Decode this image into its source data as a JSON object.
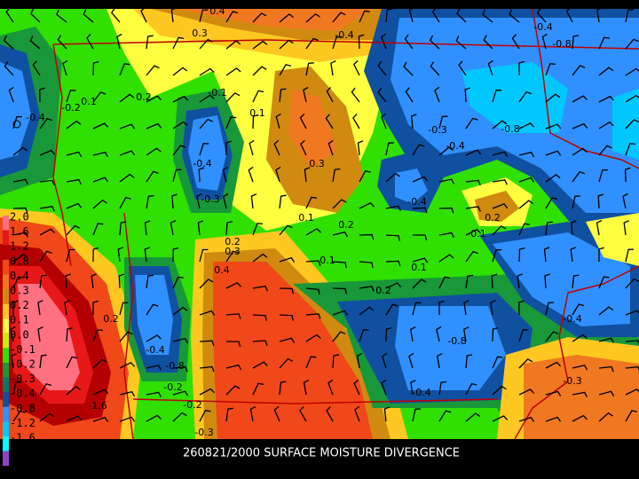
{
  "title": "260821/2000 SURFACE MOISTURE DIVERGENCE",
  "legend": {
    "levels": [
      {
        "label": "2.0",
        "color": "#ff7080"
      },
      {
        "label": "1.6",
        "color": "#e81818"
      },
      {
        "label": "1.2",
        "color": "#b40000"
      },
      {
        "label": "0.8",
        "color": "#f04818"
      },
      {
        "label": "0.4",
        "color": "#f07820"
      },
      {
        "label": "0.3",
        "color": "#d08a10"
      },
      {
        "label": "0.2",
        "color": "#ffc820"
      },
      {
        "label": "0.1",
        "color": "#ffff40"
      },
      {
        "label": "0.0",
        "color": "#c8f000"
      },
      {
        "label": "-0.1",
        "color": "#30e000"
      },
      {
        "label": "-0.2",
        "color": "#189838"
      },
      {
        "label": "-0.3",
        "color": "#0a7868"
      },
      {
        "label": "-0.4",
        "color": "#1050a0"
      },
      {
        "label": "-0.8",
        "color": "#3090ff"
      },
      {
        "label": "-1.2",
        "color": "#00c8ff"
      },
      {
        "label": "-1.6",
        "color": "#00ffff"
      }
    ]
  },
  "contour_labels": [
    "0.4",
    "0.3",
    "-0.4",
    "-0.8",
    "-0.4",
    "-0.2",
    "0.1",
    "0.2",
    "-0.1",
    "0.1",
    "-0.4",
    "-0.3",
    "0.3",
    "-0.8",
    "-0.4",
    "-0.3",
    "-0.4",
    "0.2",
    "0.1",
    "0.2",
    "-0.1",
    "0.2",
    "0.3",
    "0.4",
    "-0.1",
    "0.2",
    "-0.4",
    "-0.8",
    "-0.4",
    "-0.8",
    "-0.2",
    "-0.4",
    "-0.3",
    "-0.2",
    "-0.3",
    "-0.4",
    "0.2",
    "-1.6",
    "0.1"
  ]
}
